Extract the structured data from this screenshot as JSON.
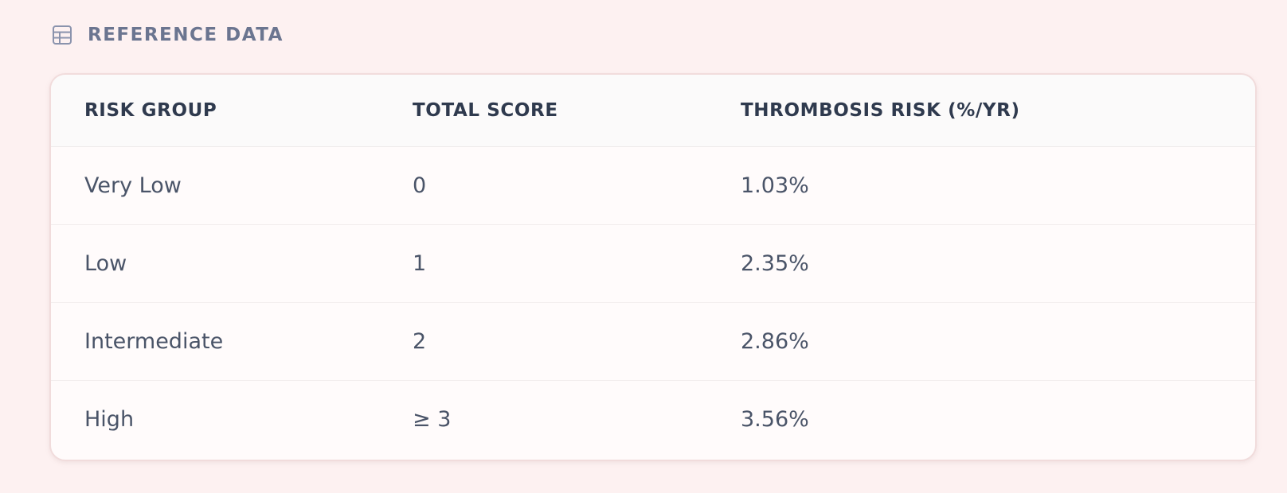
{
  "section": {
    "icon": "table-icon",
    "title": "REFERENCE DATA"
  },
  "table": {
    "headers": [
      "RISK GROUP",
      "TOTAL SCORE",
      "THROMBOSIS RISK (%/YR)"
    ],
    "rows": [
      {
        "group": "Very Low",
        "score": "0",
        "risk": "1.03%"
      },
      {
        "group": "Low",
        "score": "1",
        "risk": "2.35%"
      },
      {
        "group": "Intermediate",
        "score": "2",
        "risk": "2.86%"
      },
      {
        "group": "High",
        "score": "≥ 3",
        "risk": "3.56%"
      }
    ]
  },
  "colors": {
    "background": "#fdf1f1",
    "title": "#6b7590",
    "header_text": "#2f3a4e",
    "cell_text": "#4a5468"
  }
}
